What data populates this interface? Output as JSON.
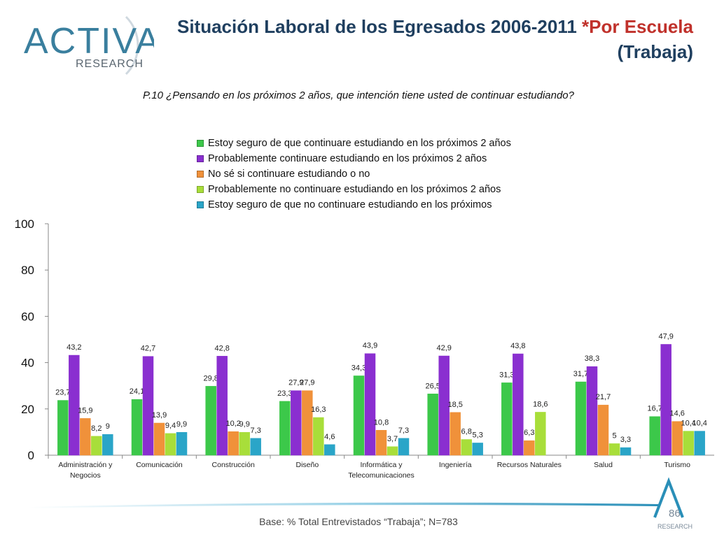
{
  "header": {
    "logo_main": "ACTIVA",
    "logo_sub": "RESEARCH",
    "title_part1": "Situación Laboral de los Egresados 2006-2011 ",
    "title_part2": "*Por Escuela",
    "title_line2": "(Trabaja)"
  },
  "question": "P.10 ¿Pensando en los próximos 2 años, que intención tiene usted de continuar estudiando?",
  "footer": {
    "base": "Base: % Total Entrevistados “Trabaja”; N=783",
    "page": "86",
    "logo_sub": "RESEARCH"
  },
  "chart_data": {
    "type": "bar",
    "ylim": [
      0,
      100
    ],
    "yticks": [
      0,
      20,
      40,
      60,
      80,
      100
    ],
    "legend_position": "top",
    "grid": false,
    "categories": [
      [
        "Administración y",
        "Negocios"
      ],
      [
        "Comunicación"
      ],
      [
        "Construcción"
      ],
      [
        "Diseño"
      ],
      [
        "Informática y",
        "Telecomunicaciones"
      ],
      [
        "Ingeniería"
      ],
      [
        "Recursos Naturales"
      ],
      [
        "Salud"
      ],
      [
        "Turismo"
      ]
    ],
    "series": [
      {
        "name": "Estoy seguro de que continuare estudiando en los próximos 2 años",
        "color": "#3cc84a",
        "values": [
          23.7,
          24.1,
          29.8,
          23.3,
          34.3,
          26.5,
          31.3,
          31.7,
          16.7
        ],
        "labels": [
          "23,7",
          "24,1",
          "29,8",
          "23,3",
          "34,3",
          "26,5",
          "31,3",
          "31,7",
          "16,7"
        ]
      },
      {
        "name": "Probablemente continuare estudiando en los próximos 2 años",
        "color": "#8a2fd0",
        "values": [
          43.2,
          42.7,
          42.8,
          27.9,
          43.9,
          42.9,
          43.8,
          38.3,
          47.9
        ],
        "labels": [
          "43,2",
          "42,7",
          "42,8",
          "27,9",
          "43,9",
          "42,9",
          "43,8",
          "38,3",
          "47,9"
        ]
      },
      {
        "name": "No sé si continuare estudiando o no",
        "color": "#f0913a",
        "values": [
          15.9,
          13.9,
          10.2,
          27.9,
          10.8,
          18.5,
          6.3,
          21.7,
          14.6
        ],
        "labels": [
          "15,9",
          "13,9",
          "10,2",
          "27,9",
          "10,8",
          "18,5",
          "6,3",
          "21,7",
          "14,6"
        ]
      },
      {
        "name": "Probablemente no continuare estudiando en los próximos 2 años",
        "color": "#a8de3a",
        "values": [
          8.2,
          9.4,
          9.9,
          16.3,
          3.7,
          6.8,
          18.6,
          5,
          10.4
        ],
        "labels": [
          "8,2",
          "9,4",
          "9,9",
          "16,3",
          "3,7",
          "6,8",
          "18,6",
          "5",
          "10,4"
        ]
      },
      {
        "name": "Estoy seguro de que no continuare estudiando en los próximos",
        "color": "#2aa5c8",
        "values": [
          9,
          9.9,
          7.3,
          4.6,
          7.3,
          5.3,
          null,
          3.3,
          10.4
        ],
        "labels": [
          "9",
          "9,9",
          "7,3",
          "4,6",
          "7,3",
          "5,3",
          "",
          "3,3",
          "10,4"
        ]
      }
    ]
  }
}
